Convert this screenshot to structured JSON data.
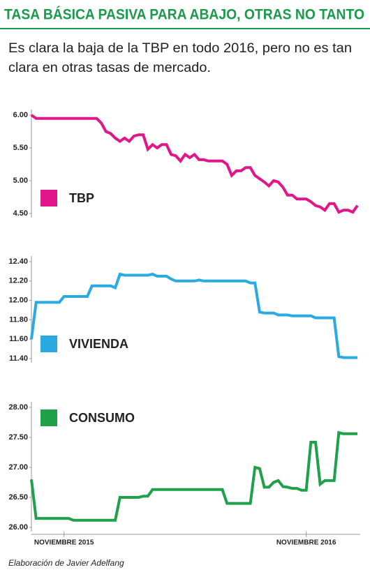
{
  "header": {
    "title": "TASA BÁSICA PASIVA PARA ABAJO, OTRAS NO TANTO",
    "subtitle": [
      "Es clara la baja de la TBP en todo 2016, pero no es tan",
      "clara en otras tasas de mercado."
    ]
  },
  "footer": "Elaboración de Javier Adelfang",
  "chart_data": [
    {
      "type": "line",
      "ylim": [
        4.5,
        6
      ],
      "yticks": [
        {
          "value": 4.5,
          "label": "4.50"
        },
        {
          "value": 5,
          "label": "5.00"
        },
        {
          "value": 5.5,
          "label": "5.50"
        },
        {
          "value": 6,
          "label": "6.00"
        }
      ],
      "series": [
        {
          "name": "TBP",
          "color": "#e0168a",
          "values": [
            6.0,
            5.95,
            5.95,
            5.95,
            5.95,
            5.95,
            5.95,
            5.95,
            5.95,
            5.95,
            5.95,
            5.95,
            5.95,
            5.95,
            5.95,
            5.88,
            5.75,
            5.72,
            5.65,
            5.6,
            5.65,
            5.6,
            5.68,
            5.7,
            5.7,
            5.48,
            5.55,
            5.5,
            5.55,
            5.55,
            5.4,
            5.38,
            5.3,
            5.4,
            5.35,
            5.4,
            5.32,
            5.32,
            5.3,
            5.3,
            5.3,
            5.3,
            5.25,
            5.08,
            5.15,
            5.15,
            5.2,
            5.2,
            5.08,
            5.03,
            4.98,
            4.92,
            5.0,
            4.98,
            4.9,
            4.78,
            4.78,
            4.72,
            4.72,
            4.72,
            4.68,
            4.62,
            4.6,
            4.55,
            4.65,
            4.65,
            4.52,
            4.55,
            4.55,
            4.52,
            4.62
          ]
        }
      ]
    },
    {
      "type": "line",
      "ylim": [
        11.4,
        12.4
      ],
      "yticks": [
        {
          "value": 11.4,
          "label": "11.40"
        },
        {
          "value": 11.6,
          "label": "11.60"
        },
        {
          "value": 11.8,
          "label": "11.80"
        },
        {
          "value": 12,
          "label": "12.00"
        },
        {
          "value": 12.2,
          "label": "12.20"
        },
        {
          "value": 12.4,
          "label": "12.40"
        }
      ],
      "series": [
        {
          "name": "VIVIENDA",
          "color": "#2aaae2",
          "values": [
            11.6,
            11.98,
            11.98,
            11.98,
            11.98,
            11.98,
            11.98,
            12.04,
            12.04,
            12.04,
            12.04,
            12.04,
            12.04,
            12.15,
            12.15,
            12.15,
            12.15,
            12.15,
            12.13,
            12.27,
            12.26,
            12.26,
            12.26,
            12.26,
            12.26,
            12.26,
            12.27,
            12.25,
            12.25,
            12.25,
            12.22,
            12.2,
            12.2,
            12.2,
            12.2,
            12.2,
            12.21,
            12.2,
            12.2,
            12.2,
            12.2,
            12.2,
            12.2,
            12.2,
            12.2,
            12.2,
            12.2,
            12.18,
            12.18,
            11.88,
            11.87,
            11.87,
            11.87,
            11.85,
            11.85,
            11.85,
            11.84,
            11.84,
            11.84,
            11.84,
            11.84,
            11.82,
            11.82,
            11.82,
            11.82,
            11.82,
            11.42,
            11.41,
            11.41,
            11.41,
            11.41
          ]
        }
      ]
    },
    {
      "type": "line",
      "categories": [
        null,
        null,
        null,
        null,
        null,
        null,
        null,
        "NOVIEMBRE 2015",
        null,
        null,
        null,
        null,
        null,
        null,
        null,
        null,
        null,
        null,
        null,
        null,
        null,
        null,
        null,
        null,
        null,
        null,
        null,
        null,
        null,
        null,
        null,
        null,
        null,
        null,
        null,
        null,
        null,
        null,
        null,
        null,
        null,
        null,
        null,
        null,
        null,
        null,
        null,
        null,
        null,
        null,
        null,
        null,
        null,
        null,
        null,
        null,
        null,
        null,
        null,
        "NOVIEMBRE 2016",
        null,
        null,
        null,
        null,
        null,
        null,
        null,
        null,
        null,
        null,
        null
      ],
      "ylim": [
        26,
        28
      ],
      "yticks": [
        {
          "value": 26,
          "label": "26.00"
        },
        {
          "value": 26.5,
          "label": "26.50"
        },
        {
          "value": 27,
          "label": "27.00"
        },
        {
          "value": 27.5,
          "label": "27.50"
        },
        {
          "value": 28,
          "label": "28.00"
        }
      ],
      "series": [
        {
          "name": "CONSUMO",
          "color": "#1fa14a",
          "values": [
            26.8,
            26.15,
            26.15,
            26.15,
            26.15,
            26.15,
            26.15,
            26.15,
            26.15,
            26.12,
            26.12,
            26.12,
            26.12,
            26.12,
            26.12,
            26.12,
            26.12,
            26.12,
            26.12,
            26.5,
            26.5,
            26.5,
            26.5,
            26.5,
            26.52,
            26.52,
            26.63,
            26.63,
            26.63,
            26.63,
            26.63,
            26.63,
            26.63,
            26.63,
            26.63,
            26.63,
            26.63,
            26.63,
            26.63,
            26.63,
            26.63,
            26.63,
            26.4,
            26.4,
            26.4,
            26.4,
            26.4,
            26.4,
            27.0,
            26.98,
            26.67,
            26.67,
            26.75,
            26.78,
            26.68,
            26.67,
            26.65,
            26.65,
            26.62,
            26.62,
            27.42,
            27.42,
            26.72,
            26.78,
            26.78,
            26.78,
            27.58,
            27.56,
            27.56,
            27.56,
            27.56
          ]
        }
      ]
    }
  ]
}
